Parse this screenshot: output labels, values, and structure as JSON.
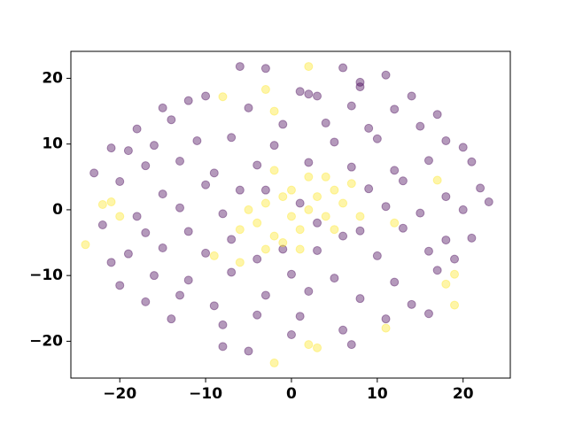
{
  "chart_data": {
    "type": "scatter",
    "xlim": [
      -25.7,
      25.5
    ],
    "ylim": [
      -25.6,
      24.1
    ],
    "xticks": [
      {
        "value": -20,
        "label": "−20"
      },
      {
        "value": -10,
        "label": "−10"
      },
      0,
      10,
      20
    ],
    "yticks": [
      {
        "value": -20,
        "label": "−20"
      },
      {
        "value": -10,
        "label": "−10"
      },
      0,
      10,
      20
    ],
    "series": [
      {
        "color": "#440154",
        "x": [
          -6,
          -3,
          6,
          11,
          8,
          8,
          1,
          2,
          3,
          -10,
          -12,
          14,
          -15,
          -5,
          7,
          12,
          17,
          -18,
          -14,
          -1,
          4,
          9,
          15,
          -21,
          -19,
          -16,
          -11,
          -7,
          -2,
          5,
          10,
          18,
          20,
          -23,
          -17,
          -13,
          -9,
          -4,
          2,
          7,
          12,
          16,
          21,
          -20,
          -15,
          -10,
          -6,
          9,
          13,
          18,
          22,
          23,
          -18,
          -13,
          -8,
          11,
          15,
          20,
          -22,
          -17,
          -12,
          -7,
          8,
          13,
          18,
          21,
          -21,
          -19,
          -15,
          -10,
          -4,
          3,
          10,
          16,
          19,
          -20,
          -16,
          -12,
          -7,
          0,
          5,
          12,
          17,
          -17,
          -13,
          -9,
          -3,
          2,
          8,
          14,
          -14,
          -8,
          -4,
          1,
          6,
          11,
          16,
          -8,
          -5,
          7,
          0,
          -1,
          3,
          -3,
          1,
          6
        ],
        "y": [
          21.8,
          21.5,
          21.6,
          20.5,
          19.4,
          18.7,
          18,
          17.6,
          17.3,
          17.3,
          16.6,
          17.3,
          15.5,
          15.5,
          15.8,
          15.3,
          14.5,
          12.3,
          13.7,
          13,
          13.2,
          12.4,
          12.7,
          9.4,
          9,
          9.8,
          10.5,
          11,
          9.8,
          10.3,
          10.8,
          10.5,
          9.5,
          5.6,
          6.7,
          7.4,
          5.6,
          6.8,
          7.2,
          6.5,
          6,
          7.5,
          7.3,
          4.3,
          2.4,
          3.8,
          3,
          3.2,
          4.4,
          2,
          3.3,
          1.2,
          -1,
          0.3,
          -0.6,
          0.5,
          -0.5,
          0,
          -2.3,
          -3.5,
          -3.3,
          -4.5,
          -3.2,
          -2.8,
          -4.6,
          -4.3,
          -8,
          -6.7,
          -5.8,
          -6.6,
          -7.5,
          -6.2,
          -7,
          -6.3,
          -7.5,
          -11.5,
          -10,
          -10.7,
          -9.5,
          -9.8,
          -10.4,
          -11,
          -9.2,
          -14,
          -13,
          -14.6,
          -13,
          -12.4,
          -13.5,
          -14.4,
          -16.6,
          -17.5,
          -16,
          -16.2,
          -18.3,
          -16.6,
          -15.8,
          -20.8,
          -21.5,
          -20.5,
          -19,
          -6,
          -2,
          3,
          1,
          -4
        ]
      },
      {
        "color": "#fde725",
        "x": [
          -24,
          -22,
          -20,
          -21,
          -3,
          2,
          -8,
          -2,
          -2,
          2,
          3,
          11,
          19,
          18,
          19,
          17,
          -6,
          -4,
          -3,
          -2,
          -1,
          0,
          0,
          1,
          2,
          3,
          4,
          5,
          6,
          7,
          -1,
          1,
          -5,
          4,
          -3,
          8,
          2,
          -6,
          5,
          -2,
          -9,
          12
        ],
        "y": [
          -5.3,
          0.8,
          -1,
          1.2,
          18.3,
          21.8,
          17.2,
          15,
          -23.3,
          -20.5,
          -21,
          -18,
          -14.5,
          -11.3,
          -9.8,
          4.5,
          -3,
          -2,
          1,
          -4,
          2,
          -1,
          3,
          -3,
          0,
          2,
          -1,
          3,
          1,
          4,
          -5,
          -6,
          0,
          5,
          -6,
          -1,
          5,
          -8,
          -3,
          6,
          -7,
          -2
        ]
      }
    ]
  }
}
